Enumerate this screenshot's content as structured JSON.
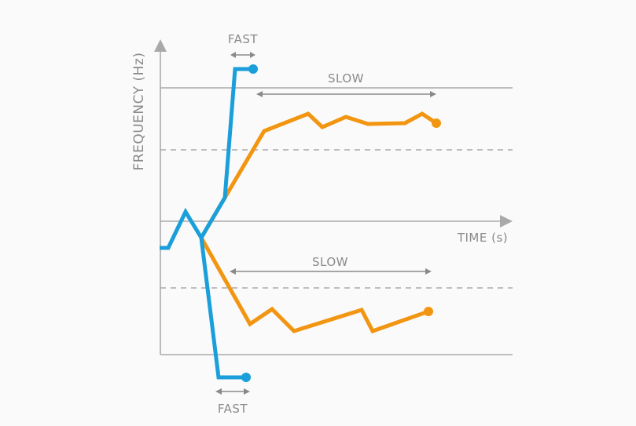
{
  "axis_labels": {
    "y": "FREQUENCY (Hz)",
    "x": "TIME (s)"
  },
  "annotations": [
    {
      "label": "FAST"
    },
    {
      "label": "SLOW"
    },
    {
      "label": "SLOW"
    },
    {
      "label": "FAST"
    }
  ]
}
